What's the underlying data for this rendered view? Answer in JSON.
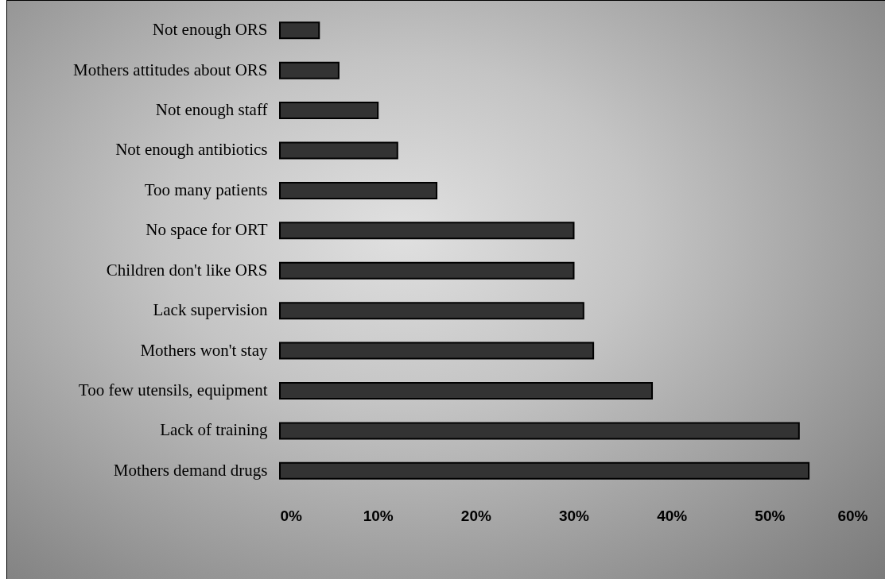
{
  "chart_data": {
    "type": "bar",
    "orientation": "horizontal",
    "categories": [
      "Not enough ORS",
      "Mothers attitudes about ORS",
      "Not enough staff",
      "Not enough antibiotics",
      "Too many patients",
      "No space for ORT",
      "Children don't like ORS",
      "Lack supervision",
      "Mothers won't stay",
      "Too few utensils, equipment",
      "Lack of training",
      "Mothers demand drugs"
    ],
    "values": [
      4,
      6,
      10,
      12,
      16,
      30,
      30,
      31,
      32,
      38,
      53,
      54
    ],
    "color": "#333333",
    "xlim": [
      0,
      60
    ],
    "xticks": [
      {
        "value": 0,
        "label": "0%"
      },
      {
        "value": 10,
        "label": "10%"
      },
      {
        "value": 20,
        "label": "20%"
      },
      {
        "value": 30,
        "label": "30%"
      },
      {
        "value": 40,
        "label": "40%"
      },
      {
        "value": 50,
        "label": "50%"
      },
      {
        "value": 60,
        "label": "60%"
      }
    ],
    "grid": false
  }
}
